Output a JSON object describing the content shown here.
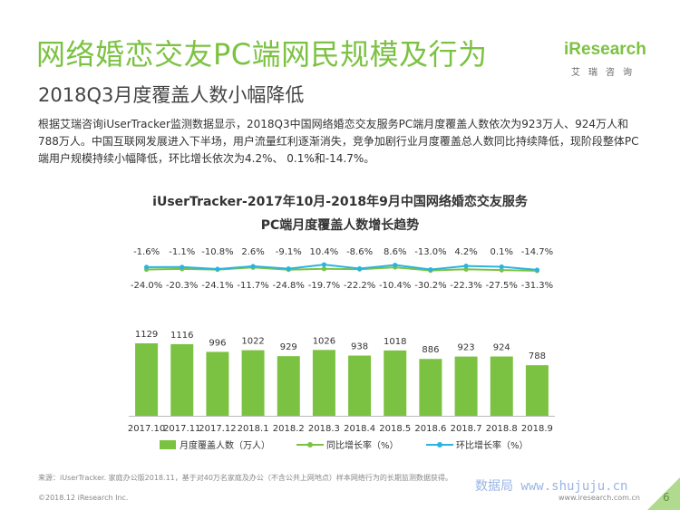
{
  "header": {
    "title": "网络婚恋交友PC端网民规模及行为",
    "subtitle": "2018Q3月度覆盖人数小幅降低"
  },
  "logo": {
    "brand": "iResearch",
    "brand_cn": "艾瑞咨询"
  },
  "body_text": "根据艾瑞咨询iUserTracker监测数据显示，2018Q3中国网络婚恋交友服务PC端月度覆盖人数依次为923万人、924万人和788万人。中国互联网发展进入下半场，用户流量红利逐渐消失，竞争加剧行业月度覆盖总人数同比持续降低，现阶段整体PC端用户规模持续小幅降低，环比增长依次为4.2%、 0.1%和-14.7%。",
  "chart_data": {
    "type": "bar",
    "title_line1": "iUserTracker-2017年10月-2018年9月中国网络婚恋交友服务",
    "title_line2": "PC端月度覆盖人数增长趋势",
    "categories": [
      "2017.10",
      "2017.11",
      "2017.12",
      "2018.1",
      "2018.2",
      "2018.3",
      "2018.4",
      "2018.5",
      "2018.6",
      "2018.7",
      "2018.8",
      "2018.9"
    ],
    "series": [
      {
        "name": "月度覆盖人数（万人）",
        "type": "bar",
        "values": [
          1129,
          1116,
          996,
          1022,
          929,
          1026,
          938,
          1018,
          886,
          923,
          924,
          788
        ],
        "labels": [
          "1129",
          "1116",
          "996",
          "1022",
          "929",
          "1026",
          "938",
          "1018",
          "886",
          "923",
          "924",
          "788"
        ]
      },
      {
        "name": "同比增长率（%）",
        "type": "line",
        "values": [
          -24.0,
          -20.3,
          -24.1,
          -11.7,
          -24.8,
          -19.7,
          -22.2,
          -10.4,
          -30.2,
          -22.3,
          -27.5,
          -31.3
        ],
        "labels": [
          "-24.0%",
          "-20.3%",
          "-24.1%",
          "-11.7%",
          "-24.8%",
          "-19.7%",
          "-22.2%",
          "-10.4%",
          "-30.2%",
          "-22.3%",
          "-27.5%",
          "-31.3%"
        ]
      },
      {
        "name": "环比增长率（%）",
        "type": "line",
        "values": [
          -1.6,
          -1.1,
          -10.8,
          2.6,
          -9.1,
          10.4,
          -8.6,
          8.6,
          -13.0,
          4.2,
          0.1,
          -14.7
        ],
        "labels": [
          "-1.6%",
          "-1.1%",
          "-10.8%",
          "2.6%",
          "-9.1%",
          "10.4%",
          "-8.6%",
          "8.6%",
          "-13.0%",
          "4.2%",
          "0.1%",
          "-14.7%"
        ]
      }
    ],
    "colors": {
      "bar": "#7cc242",
      "yoy_line": "#7cc242",
      "mom_line": "#2ab4e0"
    },
    "legend_position": "bottom",
    "grid": false
  },
  "footer": {
    "source": "来源：iUserTracker. 家庭办公版2018.11，基于对40万名家庭及办公（不含公共上网地点）样本网络行为的长期监测数据获得。",
    "copyright": "©2018.12 iResearch Inc.",
    "website": "www.iresearch.com.cn",
    "page": "6",
    "watermark": "数据局 www.shujuju.cn"
  }
}
